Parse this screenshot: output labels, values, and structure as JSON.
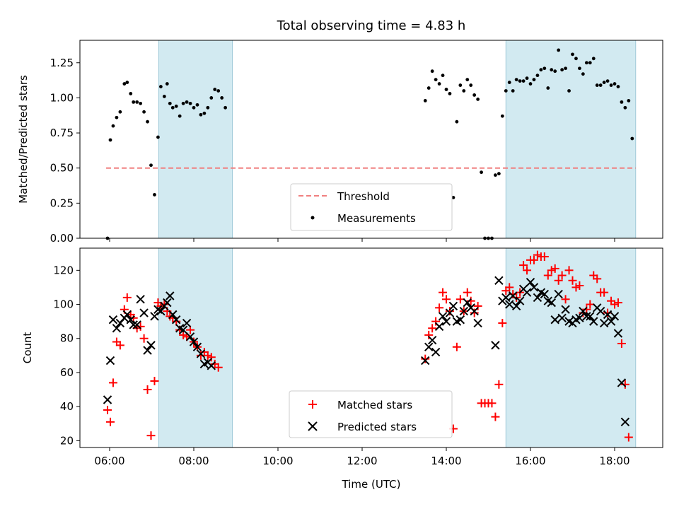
{
  "chart_data": [
    {
      "type": "scatter",
      "title": "Total observing time = 4.83 h",
      "xlabel": "",
      "ylabel": "Matched/Predicted stars",
      "ylim": [
        0,
        1.41
      ],
      "yticks": [
        "0.00",
        "0.25",
        "0.50",
        "0.75",
        "1.00",
        "1.25"
      ],
      "shaded_intervals": [
        [
          "07:10",
          "08:55"
        ],
        [
          "15:25",
          "18:30"
        ]
      ],
      "shade_color": "#add8e6",
      "legend_placement": "lower center",
      "series": [
        {
          "name": "Threshold",
          "style": "dashed line",
          "color": "#f08080",
          "x": [
            "05:55",
            "18:30"
          ],
          "y": [
            0.5,
            0.5
          ]
        },
        {
          "name": "Measurements",
          "style": "dots",
          "color": "#000000",
          "x": [
            "05:57",
            "06:01",
            "06:05",
            "06:10",
            "06:15",
            "06:21",
            "06:25",
            "06:30",
            "06:34",
            "06:39",
            "06:44",
            "06:49",
            "06:54",
            "06:59",
            "07:04",
            "07:09",
            "07:13",
            "07:18",
            "07:22",
            "07:26",
            "07:30",
            "07:35",
            "07:40",
            "07:45",
            "07:50",
            "07:55",
            "08:00",
            "08:05",
            "08:10",
            "08:15",
            "08:20",
            "08:25",
            "08:30",
            "08:35",
            "08:40",
            "08:45",
            "08:50",
            "08:55",
            "13:30",
            "13:35",
            "13:40",
            "13:45",
            "13:50",
            "13:55",
            "14:00",
            "14:05",
            "14:10",
            "14:15",
            "14:20",
            "14:25",
            "14:30",
            "14:35",
            "14:40",
            "14:45",
            "14:50",
            "14:55",
            "15:00",
            "15:05",
            "15:10",
            "15:15",
            "15:20",
            "15:25",
            "15:30",
            "15:35",
            "15:40",
            "15:45",
            "15:50",
            "15:55",
            "16:00",
            "16:05",
            "16:10",
            "16:15",
            "16:20",
            "16:25",
            "16:30",
            "16:35",
            "16:40",
            "16:45",
            "16:50",
            "16:55",
            "17:00",
            "17:05",
            "17:10",
            "17:15",
            "17:20",
            "17:25",
            "17:30",
            "17:35",
            "17:40",
            "17:45",
            "17:50",
            "17:55",
            "18:00",
            "18:05",
            "18:10",
            "18:15",
            "18:20",
            "18:25",
            "18:30"
          ],
          "y": [
            0.0,
            0.7,
            0.8,
            0.86,
            0.9,
            1.1,
            1.11,
            1.03,
            0.97,
            0.97,
            0.96,
            0.9,
            0.83,
            0.52,
            0.31,
            0.72,
            1.08,
            1.01,
            1.1,
            0.96,
            0.93,
            0.94,
            0.87,
            0.96,
            0.97,
            0.96,
            0.93,
            0.95,
            0.88,
            0.89,
            0.93,
            1.0,
            1.06,
            1.05,
            1.0,
            0.93,
            null,
            null,
            0.98,
            1.07,
            1.19,
            1.13,
            1.1,
            1.16,
            1.06,
            1.03,
            0.29,
            0.83,
            1.09,
            1.05,
            1.13,
            1.09,
            1.02,
            0.99,
            0.47,
            0.0,
            0.0,
            0.0,
            0.45,
            0.46,
            0.87,
            1.05,
            1.11,
            1.05,
            1.13,
            1.12,
            1.12,
            1.14,
            1.1,
            1.13,
            1.16,
            1.2,
            1.21,
            1.07,
            1.2,
            1.19,
            1.34,
            1.2,
            1.21,
            1.05,
            1.31,
            1.28,
            1.21,
            1.17,
            1.25,
            1.25,
            1.28,
            1.09,
            1.09,
            1.11,
            1.12,
            1.09,
            1.1,
            1.08,
            0.97,
            0.93,
            0.98,
            0.71,
            null
          ]
        }
      ]
    },
    {
      "type": "scatter",
      "title": "",
      "xlabel": "Time (UTC)",
      "ylabel": "Count",
      "ylim": [
        16,
        133
      ],
      "yticks": [
        "20",
        "40",
        "60",
        "80",
        "100",
        "120"
      ],
      "xticks": [
        "06:00",
        "08:00",
        "10:00",
        "12:00",
        "14:00",
        "16:00",
        "18:00"
      ],
      "shaded_intervals": [
        [
          "07:10",
          "08:55"
        ],
        [
          "15:25",
          "18:30"
        ]
      ],
      "shade_color": "#add8e6",
      "legend_placement": "lower center",
      "series": [
        {
          "name": "Matched stars",
          "marker": "+",
          "color": "#ff0000",
          "x": [
            "05:57",
            "06:01",
            "06:05",
            "06:10",
            "06:15",
            "06:21",
            "06:25",
            "06:30",
            "06:34",
            "06:39",
            "06:44",
            "06:49",
            "06:54",
            "06:59",
            "07:04",
            "07:09",
            "07:13",
            "07:18",
            "07:22",
            "07:26",
            "07:30",
            "07:35",
            "07:40",
            "07:45",
            "07:50",
            "07:55",
            "08:00",
            "08:05",
            "08:10",
            "08:15",
            "08:20",
            "08:25",
            "08:30",
            "08:35",
            "08:40",
            "08:45",
            "08:50",
            "08:55",
            "13:30",
            "13:35",
            "13:40",
            "13:45",
            "13:50",
            "13:55",
            "14:00",
            "14:05",
            "14:10",
            "14:15",
            "14:20",
            "14:25",
            "14:30",
            "14:35",
            "14:40",
            "14:45",
            "14:50",
            "14:55",
            "15:00",
            "15:05",
            "15:10",
            "15:15",
            "15:20",
            "15:25",
            "15:30",
            "15:35",
            "15:40",
            "15:45",
            "15:50",
            "15:55",
            "16:00",
            "16:05",
            "16:10",
            "16:15",
            "16:20",
            "16:25",
            "16:30",
            "16:35",
            "16:40",
            "16:45",
            "16:50",
            "16:55",
            "17:00",
            "17:05",
            "17:10",
            "17:15",
            "17:20",
            "17:25",
            "17:30",
            "17:35",
            "17:40",
            "17:45",
            "17:50",
            "17:55",
            "18:00",
            "18:05",
            "18:10",
            "18:15",
            "18:20",
            "18:25",
            "18:30"
          ],
          "y": [
            38,
            31,
            54,
            78,
            76,
            97,
            104,
            94,
            92,
            86,
            87,
            80,
            50,
            23,
            55,
            101,
            99,
            100,
            96,
            93,
            92,
            90,
            85,
            82,
            81,
            85,
            78,
            75,
            70,
            72,
            70,
            69,
            65,
            63,
            null,
            null,
            null,
            null,
            68,
            82,
            86,
            90,
            98,
            107,
            103,
            96,
            27,
            75,
            103,
            96,
            107,
            102,
            95,
            99,
            42,
            42,
            42,
            42,
            34,
            53,
            89,
            108,
            110,
            106,
            104,
            107,
            123,
            120,
            126,
            126,
            129,
            128,
            128,
            117,
            120,
            121,
            114,
            117,
            103,
            120,
            114,
            110,
            111,
            95,
            97,
            100,
            117,
            115,
            107,
            107,
            95,
            102,
            100,
            101,
            77,
            53,
            22,
            null,
            null
          ],
          "show_points": 98
        },
        {
          "name": "Predicted stars",
          "marker": "x",
          "color": "#000000",
          "x": [
            "05:57",
            "06:01",
            "06:05",
            "06:10",
            "06:15",
            "06:21",
            "06:25",
            "06:30",
            "06:34",
            "06:39",
            "06:44",
            "06:49",
            "06:54",
            "06:59",
            "07:04",
            "07:09",
            "07:13",
            "07:18",
            "07:22",
            "07:26",
            "07:30",
            "07:35",
            "07:40",
            "07:45",
            "07:50",
            "07:55",
            "08:00",
            "08:05",
            "08:10",
            "08:15",
            "08:20",
            "08:25",
            "08:30",
            "08:35",
            "08:40",
            "08:45",
            "08:50",
            "08:55",
            "13:30",
            "13:35",
            "13:40",
            "13:45",
            "13:50",
            "13:55",
            "14:00",
            "14:05",
            "14:10",
            "14:15",
            "14:20",
            "14:25",
            "14:30",
            "14:35",
            "14:40",
            "14:45",
            "14:50",
            "14:55",
            "15:00",
            "15:05",
            "15:10",
            "15:15",
            "15:20",
            "15:25",
            "15:30",
            "15:35",
            "15:40",
            "15:45",
            "15:50",
            "15:55",
            "16:00",
            "16:05",
            "16:10",
            "16:15",
            "16:20",
            "16:25",
            "16:30",
            "16:35",
            "16:40",
            "16:45",
            "16:50",
            "16:55",
            "17:00",
            "17:05",
            "17:10",
            "17:15",
            "17:20",
            "17:25",
            "17:30",
            "17:35",
            "17:40",
            "17:45",
            "17:50",
            "17:55",
            "18:00",
            "18:05",
            "18:10",
            "18:15",
            "18:20",
            "18:25",
            "18:30"
          ],
          "y": [
            44,
            67,
            91,
            86,
            89,
            92,
            94,
            91,
            88,
            88,
            103,
            95,
            73,
            76,
            93,
            97,
            96,
            99,
            101,
            105,
            94,
            91,
            86,
            85,
            89,
            81,
            78,
            75,
            71,
            65,
            66,
            64,
            null,
            null,
            null,
            null,
            null,
            null,
            67,
            75,
            79,
            72,
            87,
            93,
            90,
            95,
            99,
            90,
            91,
            96,
            101,
            98,
            96,
            89,
            null,
            null,
            null,
            null,
            76,
            114,
            102,
            104,
            100,
            105,
            99,
            102,
            109,
            107,
            113,
            110,
            104,
            107,
            106,
            102,
            101,
            91,
            106,
            92,
            97,
            90,
            89,
            91,
            92,
            96,
            93,
            93,
            90,
            98,
            96,
            89,
            94,
            90,
            93,
            83,
            54,
            31,
            null,
            null,
            null
          ]
        }
      ]
    }
  ]
}
